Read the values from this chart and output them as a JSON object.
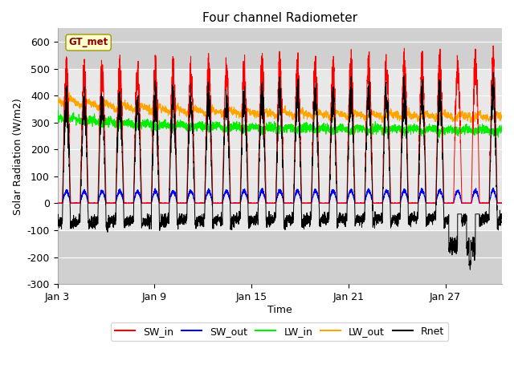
{
  "title": "Four channel Radiometer",
  "xlabel": "Time",
  "ylabel": "Solar Radiation (W/m2)",
  "ylim": [
    -300,
    650
  ],
  "yticks": [
    -300,
    -200,
    -100,
    0,
    100,
    200,
    300,
    400,
    500,
    600
  ],
  "xtick_labels": [
    "Jan 3",
    "Jan 9",
    "Jan 15",
    "Jan 21",
    "Jan 27"
  ],
  "xlim_days": [
    2,
    29.5
  ],
  "xtick_positions": [
    2,
    8,
    14,
    20,
    26
  ],
  "station_label": "GT_met",
  "background_color": "#ffffff",
  "plot_bg_dark": "#d0d0d0",
  "plot_bg_light": "#e8e8e8",
  "sw_in_color": "#ff0000",
  "sw_out_color": "#0000ff",
  "lw_in_color": "#00ee00",
  "lw_out_color": "#ffa500",
  "rnet_color": "#000000",
  "n_days": 27,
  "start_day": 2,
  "points_per_day": 144,
  "sw_in_peak": 550,
  "lw_in_base": 285,
  "lw_out_base": 340,
  "sw_out_scale": 0.1,
  "rnet_night": -65,
  "light_region_low": -100,
  "light_region_high": 500
}
